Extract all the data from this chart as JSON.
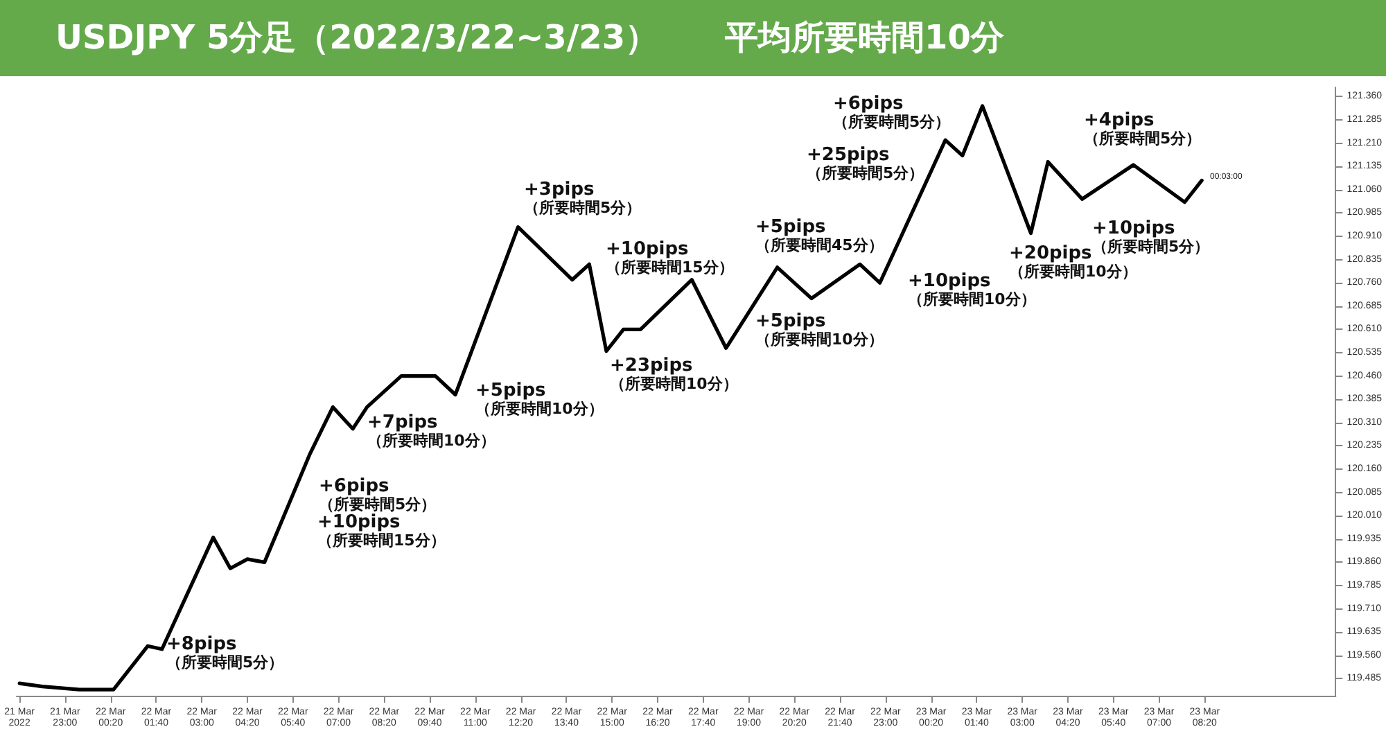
{
  "chart_data": {
    "type": "line",
    "title": "USDJPY 5分足（2022/3/22~3/23）　　平均所要時間10分",
    "x": [
      "2022-03-21T21:40",
      "2022-03-21T22:20",
      "2022-03-21T23:25",
      "2022-03-22T00:25",
      "2022-03-22T01:25",
      "2022-03-22T01:50",
      "2022-03-22T03:20",
      "2022-03-22T03:50",
      "2022-03-22T04:20",
      "2022-03-22T04:50",
      "2022-03-22T06:10",
      "2022-03-22T06:50",
      "2022-03-22T07:25",
      "2022-03-22T07:50",
      "2022-03-22T08:50",
      "2022-03-22T09:50",
      "2022-03-22T10:25",
      "2022-03-22T12:15",
      "2022-03-22T13:50",
      "2022-03-22T14:20",
      "2022-03-22T14:50",
      "2022-03-22T15:20",
      "2022-03-22T15:50",
      "2022-03-22T17:20",
      "2022-03-22T18:20",
      "2022-03-22T19:50",
      "2022-03-22T20:50",
      "2022-03-22T22:15",
      "2022-03-22T22:50",
      "2022-03-23T00:45",
      "2022-03-23T01:15",
      "2022-03-23T01:50",
      "2022-03-23T03:15",
      "2022-03-23T03:45",
      "2022-03-23T04:45",
      "2022-03-23T06:15",
      "2022-03-23T07:45",
      "2022-03-23T08:15"
    ],
    "series": [
      {
        "color": "#000000",
        "values": [
          119.47,
          119.46,
          119.45,
          119.45,
          119.59,
          119.58,
          119.94,
          119.84,
          119.87,
          119.86,
          120.21,
          120.36,
          120.29,
          120.36,
          120.46,
          120.46,
          120.4,
          120.94,
          120.77,
          120.82,
          120.54,
          120.61,
          120.61,
          120.77,
          120.55,
          120.81,
          120.71,
          120.82,
          120.76,
          121.22,
          121.17,
          121.33,
          120.92,
          121.15,
          121.03,
          121.14,
          121.02,
          121.09
        ]
      }
    ],
    "marker": "none",
    "line_style": "solid",
    "xlim": [
      "2022-03-21T21:35",
      "2022-03-23T12:10"
    ],
    "xticks": [
      {
        "value": "2022-03-21T21:40",
        "label": "21 Mar 2022"
      },
      {
        "value": "2022-03-21T23:00",
        "label": "21 Mar 23:00"
      },
      {
        "value": "2022-03-22T00:20",
        "label": "22 Mar 00:20"
      },
      {
        "value": "2022-03-22T01:40",
        "label": "22 Mar 01:40"
      },
      {
        "value": "2022-03-22T03:00",
        "label": "22 Mar 03:00"
      },
      {
        "value": "2022-03-22T04:20",
        "label": "22 Mar 04:20"
      },
      {
        "value": "2022-03-22T05:40",
        "label": "22 Mar 05:40"
      },
      {
        "value": "2022-03-22T07:00",
        "label": "22 Mar 07:00"
      },
      {
        "value": "2022-03-22T08:20",
        "label": "22 Mar 08:20"
      },
      {
        "value": "2022-03-22T09:40",
        "label": "22 Mar 09:40"
      },
      {
        "value": "2022-03-22T11:00",
        "label": "22 Mar 11:00"
      },
      {
        "value": "2022-03-22T12:20",
        "label": "22 Mar 12:20"
      },
      {
        "value": "2022-03-22T13:40",
        "label": "22 Mar 13:40"
      },
      {
        "value": "2022-03-22T15:00",
        "label": "22 Mar 15:00"
      },
      {
        "value": "2022-03-22T16:20",
        "label": "22 Mar 16:20"
      },
      {
        "value": "2022-03-22T17:40",
        "label": "22 Mar 17:40"
      },
      {
        "value": "2022-03-22T19:00",
        "label": "22 Mar 19:00"
      },
      {
        "value": "2022-03-22T20:20",
        "label": "22 Mar 20:20"
      },
      {
        "value": "2022-03-22T21:40",
        "label": "22 Mar 21:40"
      },
      {
        "value": "2022-03-22T23:00",
        "label": "22 Mar 23:00"
      },
      {
        "value": "2022-03-23T00:20",
        "label": "23 Mar 00:20"
      },
      {
        "value": "2022-03-23T01:40",
        "label": "23 Mar 01:40"
      },
      {
        "value": "2022-03-23T03:00",
        "label": "23 Mar 03:00"
      },
      {
        "value": "2022-03-23T04:20",
        "label": "23 Mar 04:20"
      },
      {
        "value": "2022-03-23T05:40",
        "label": "23 Mar 05:40"
      },
      {
        "value": "2022-03-23T07:00",
        "label": "23 Mar 07:00"
      },
      {
        "value": "2022-03-23T08:20",
        "label": "23 Mar 08:20"
      }
    ],
    "ylim": [
      119.43,
      121.39
    ],
    "yticks": [
      {
        "value": 119.485,
        "label": "119.485"
      },
      {
        "value": 119.56,
        "label": "119.560"
      },
      {
        "value": 119.635,
        "label": "119.635"
      },
      {
        "value": 119.71,
        "label": "119.710"
      },
      {
        "value": 119.785,
        "label": "119.785"
      },
      {
        "value": 119.86,
        "label": "119.860"
      },
      {
        "value": 119.935,
        "label": "119.935"
      },
      {
        "value": 120.01,
        "label": "120.010"
      },
      {
        "value": 120.085,
        "label": "120.085"
      },
      {
        "value": 120.16,
        "label": "120.160"
      },
      {
        "value": 120.235,
        "label": "120.235"
      },
      {
        "value": 120.31,
        "label": "120.310"
      },
      {
        "value": 120.385,
        "label": "120.385"
      },
      {
        "value": 120.46,
        "label": "120.460"
      },
      {
        "value": 120.535,
        "label": "120.535"
      },
      {
        "value": 120.61,
        "label": "120.610"
      },
      {
        "value": 120.685,
        "label": "120.685"
      },
      {
        "value": 120.76,
        "label": "120.760"
      },
      {
        "value": 120.835,
        "label": "120.835"
      },
      {
        "value": 120.91,
        "label": "120.910"
      },
      {
        "value": 120.985,
        "label": "120.985"
      },
      {
        "value": 121.06,
        "label": "121.060"
      },
      {
        "value": 121.135,
        "label": "121.135"
      },
      {
        "value": 121.21,
        "label": "121.210"
      },
      {
        "value": 121.285,
        "label": "121.285"
      },
      {
        "value": 121.36,
        "label": "121.360"
      }
    ],
    "annotations": [
      "+8pips\n（所要時間5分）",
      "+10pips\n（所要時間15分）",
      "+6pips\n（所要時間5分）",
      "+7pips\n（所要時間10分）",
      "+5pips\n（所要時間10分）",
      "+3pips\n（所要時間5分）",
      "+10pips\n（所要時間15分）",
      "+23pips\n（所要時間10分）",
      "+5pips\n（所要時間45分）",
      "+5pips\n（所要時間10分）",
      "+25pips\n（所要時間5分）",
      "+6pips\n（所要時間5分）",
      "+10pips\n（所要時間10分）",
      "+20pips\n（所要時間10分）",
      "+4pips\n（所要時間5分）",
      "+10pips\n（所要時間5分）",
      "00:03:00"
    ]
  }
}
